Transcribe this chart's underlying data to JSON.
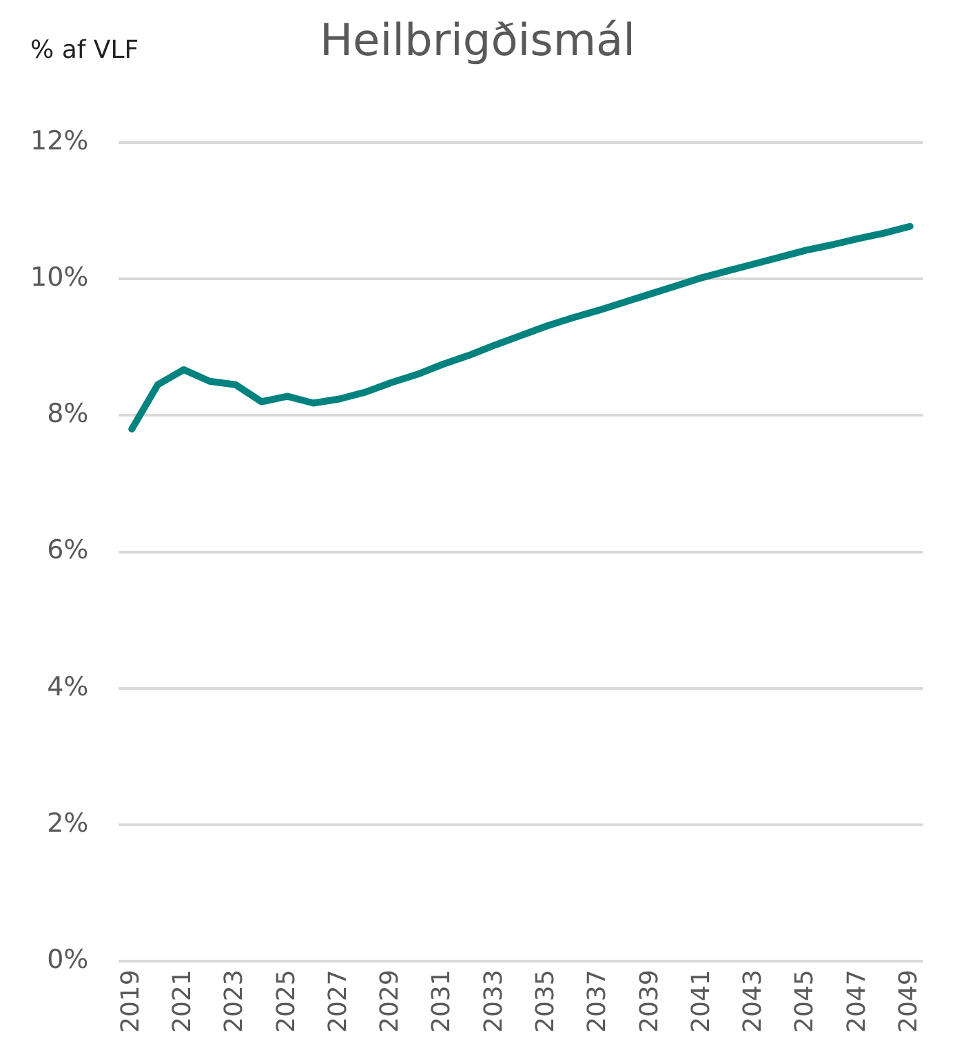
{
  "chart_data": {
    "type": "line",
    "title": "Heilbrigðismál",
    "ylabel": "% af VLF",
    "categories": [
      "2019",
      null,
      "2021",
      null,
      "2023",
      null,
      "2025",
      null,
      "2027",
      null,
      "2029",
      null,
      "2031",
      null,
      "2033",
      null,
      "2035",
      null,
      "2037",
      null,
      "2039",
      null,
      "2041",
      null,
      "2043",
      null,
      "2045",
      null,
      "2047",
      null,
      "2049"
    ],
    "series": [
      {
        "color": "#00827f",
        "values": [
          7.8,
          8.45,
          8.67,
          8.5,
          8.45,
          8.2,
          8.28,
          8.18,
          8.24,
          8.34,
          8.48,
          8.6,
          8.75,
          8.88,
          9.03,
          9.17,
          9.31,
          9.43,
          9.54,
          9.66,
          9.78,
          9.9,
          10.02,
          10.12,
          10.22,
          10.32,
          10.42,
          10.5,
          10.59,
          10.67,
          10.77
        ]
      }
    ],
    "ylim": [
      0,
      12
    ],
    "yticks": [
      {
        "value": 0,
        "label": "0%"
      },
      {
        "value": 2,
        "label": "2%"
      },
      {
        "value": 4,
        "label": "4%"
      },
      {
        "value": 6,
        "label": "6%"
      },
      {
        "value": 8,
        "label": "8%"
      },
      {
        "value": 10,
        "label": "10%"
      },
      {
        "value": 12,
        "label": "12%"
      }
    ],
    "grid": "y",
    "legend": false,
    "marker": "none",
    "line_style": "solid"
  }
}
